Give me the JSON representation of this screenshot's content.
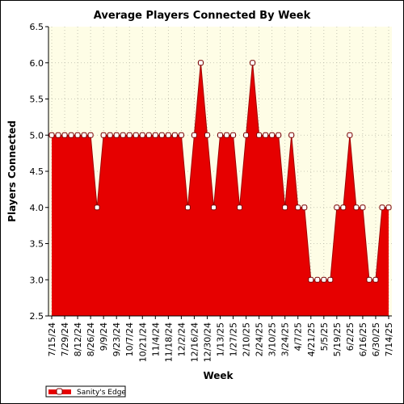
{
  "chart_data": {
    "type": "area",
    "title": "Average Players Connected By Week",
    "xlabel": "Week",
    "ylabel": "Players Connected",
    "ylim": [
      2.5,
      6.5
    ],
    "yticks": [
      "2.5",
      "3.0",
      "3.5",
      "4.0",
      "4.5",
      "5.0",
      "5.5",
      "6.0",
      "6.5"
    ],
    "xtick_labels": [
      "7/15/24",
      "7/29/24",
      "8/12/24",
      "8/26/24",
      "9/9/24",
      "9/23/24",
      "10/7/24",
      "10/21/24",
      "11/4/24",
      "11/18/24",
      "12/2/24",
      "12/16/24",
      "12/30/24",
      "1/13/25",
      "1/27/25",
      "2/10/25",
      "2/24/25",
      "3/10/25",
      "3/24/25",
      "4/7/25",
      "4/21/25",
      "5/5/25",
      "5/19/25",
      "6/2/25",
      "6/16/25",
      "6/30/25",
      "7/14/25"
    ],
    "grid": true,
    "legend_position": "bottom-left",
    "colors": {
      "fill": "#e60000",
      "line": "#a00000",
      "plot_bg": "#fefde6",
      "marker_fill": "#ffffff",
      "marker_stroke": "#7a0000"
    },
    "series": [
      {
        "name": "Sanity's Edge",
        "values": [
          5,
          5,
          5,
          5,
          5,
          5,
          5,
          4,
          5,
          5,
          5,
          5,
          5,
          5,
          5,
          5,
          5,
          5,
          5,
          5,
          5,
          4,
          5,
          6,
          5,
          4,
          5,
          5,
          5,
          4,
          5,
          6,
          5,
          5,
          5,
          5,
          4,
          5,
          4,
          4,
          3,
          3,
          3,
          3,
          4,
          4,
          5,
          4,
          4,
          3,
          3,
          4,
          4
        ]
      }
    ]
  }
}
